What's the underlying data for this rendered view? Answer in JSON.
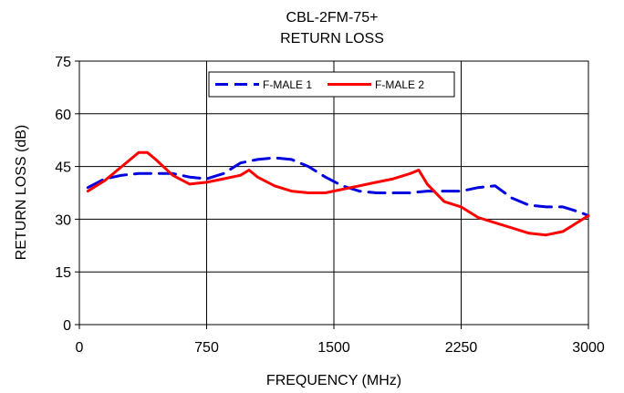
{
  "chart_data": {
    "type": "line",
    "title": "CBL-2FM-75+",
    "subtitle": "RETURN LOSS",
    "xlabel": "FREQUENCY (MHz)",
    "ylabel": "RETURN LOSS (dB)",
    "xlim": [
      0,
      3000
    ],
    "ylim": [
      0,
      75
    ],
    "xticks": [
      "0",
      "750",
      "1500",
      "2250",
      "3000"
    ],
    "yticks": [
      "0",
      "15",
      "30",
      "45",
      "60",
      "75"
    ],
    "grid": "horizontal and vertical",
    "legend": "top-center",
    "series": [
      {
        "name": "F-MALE 1",
        "color": "#0000e0",
        "dash": "dashed",
        "x": [
          50,
          150,
          250,
          350,
          450,
          550,
          650,
          750,
          850,
          950,
          1050,
          1150,
          1250,
          1350,
          1450,
          1550,
          1650,
          1750,
          1850,
          1950,
          2050,
          2150,
          2250,
          2350,
          2450,
          2550,
          2650,
          2750,
          2850,
          2950,
          3000
        ],
        "y": [
          39,
          41.5,
          42.5,
          43,
          43,
          43,
          42,
          41.5,
          43,
          46,
          47,
          47.5,
          47,
          45,
          42,
          39.5,
          38,
          37.5,
          37.5,
          37.5,
          38,
          38,
          38,
          39,
          39.5,
          36,
          34,
          33.5,
          33.5,
          32,
          31
        ]
      },
      {
        "name": "F-MALE 2",
        "color": "#ff0000",
        "dash": "solid",
        "x": [
          50,
          150,
          250,
          350,
          400,
          450,
          550,
          650,
          750,
          850,
          950,
          1000,
          1050,
          1150,
          1250,
          1350,
          1450,
          1550,
          1650,
          1750,
          1850,
          1950,
          2000,
          2050,
          2150,
          2250,
          2350,
          2450,
          2550,
          2650,
          2750,
          2850,
          2950,
          3000
        ],
        "y": [
          38,
          41,
          45,
          49,
          49,
          47,
          42.5,
          40,
          40.5,
          41.5,
          42.5,
          44,
          42,
          39.5,
          38,
          37.5,
          37.5,
          38.5,
          39.5,
          40.5,
          41.5,
          43,
          44,
          40,
          35,
          33.5,
          30.5,
          29,
          27.5,
          26,
          25.5,
          26.5,
          29.5,
          31
        ]
      }
    ]
  }
}
